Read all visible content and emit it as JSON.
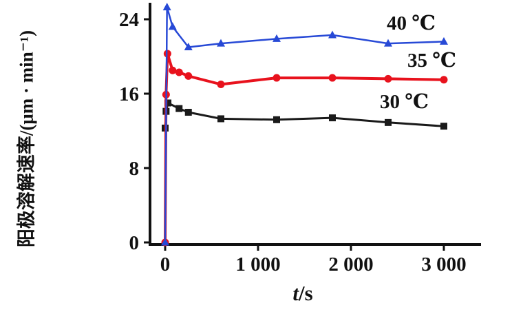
{
  "figure": {
    "xlabel_var": "t",
    "xlabel_rest": "/s",
    "ylabel": "阳极溶解速率/(μm · min⁻¹)"
  },
  "chart_data": {
    "type": "line",
    "title": "",
    "xlabel": "t/s",
    "ylabel": "阳极溶解速率/(μm·min⁻¹)",
    "xlim": [
      0,
      3200
    ],
    "ylim": [
      0,
      25.5
    ],
    "grid": false,
    "legend_position": "inside-right",
    "xticks": [
      0,
      1000,
      2000,
      3000
    ],
    "xtick_labels": [
      "0",
      "1 000",
      "2 000",
      "3 000"
    ],
    "yticks": [
      0,
      8,
      16,
      24
    ],
    "ytick_labels": [
      "0",
      "8",
      "16",
      "24"
    ],
    "series": [
      {
        "name": "30 ℃",
        "color": "#1a1a1a",
        "marker": "square",
        "line_width": 3,
        "x": [
          0,
          10,
          30,
          150,
          250,
          600,
          1200,
          1800,
          2400,
          3000
        ],
        "y": [
          12.3,
          14.1,
          15.0,
          14.4,
          14.0,
          13.3,
          13.2,
          13.4,
          12.9,
          12.5
        ]
      },
      {
        "name": "35 ℃",
        "color": "#e8121d",
        "marker": "circle",
        "line_width": 4,
        "x": [
          0,
          10,
          25,
          80,
          150,
          250,
          600,
          1200,
          1800,
          2400,
          3000
        ],
        "y": [
          0,
          15.9,
          20.3,
          18.5,
          18.3,
          17.9,
          17.0,
          17.7,
          17.7,
          17.6,
          17.5
        ]
      },
      {
        "name": "40 ℃",
        "color": "#2749d6",
        "marker": "triangle",
        "line_width": 2.5,
        "x": [
          0,
          20,
          80,
          250,
          600,
          1200,
          1800,
          2400,
          3000
        ],
        "y": [
          0,
          25.3,
          23.2,
          21.0,
          21.4,
          21.9,
          22.3,
          21.4,
          21.6
        ]
      }
    ],
    "legend": [
      {
        "label": "40 ℃",
        "series": "40 ℃"
      },
      {
        "label": "35 ℃",
        "series": "35 ℃"
      },
      {
        "label": "30 ℃",
        "series": "30 ℃"
      }
    ]
  }
}
